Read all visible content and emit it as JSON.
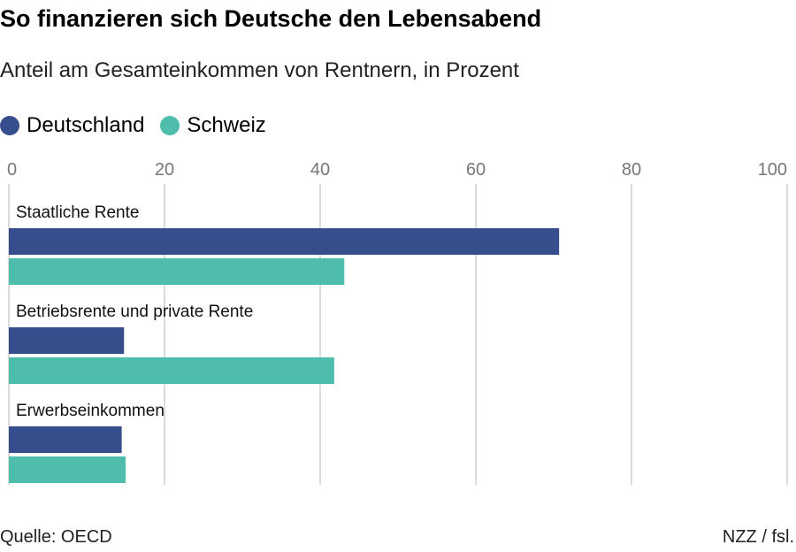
{
  "header": {
    "title": "So finanzieren sich Deutsche den Lebensabend",
    "subtitle": "Anteil am Gesamteinkommen von Rentnern, in Prozent"
  },
  "legend": {
    "items": [
      {
        "label": "Deutschland",
        "color": "#374e8c"
      },
      {
        "label": "Schweiz",
        "color": "#4fbdac"
      }
    ]
  },
  "footer": {
    "source": "Quelle: OECD",
    "credit": "NZZ / fsl."
  },
  "chart_data": {
    "type": "bar",
    "orientation": "horizontal",
    "categories": [
      "Staatliche Rente",
      "Betriebsrente und private Rente",
      "Erwerbseinkommen"
    ],
    "series": [
      {
        "name": "Deutschland",
        "color": "#374e8c",
        "values": [
          70.7,
          14.8,
          14.5
        ]
      },
      {
        "name": "Schweiz",
        "color": "#4fbdac",
        "values": [
          43.1,
          41.8,
          15.0
        ]
      }
    ],
    "ticks": [
      "0",
      "20",
      "40",
      "60",
      "80",
      "100"
    ],
    "xlim": [
      0,
      100
    ],
    "grid": true,
    "legend_position": "top-left"
  }
}
